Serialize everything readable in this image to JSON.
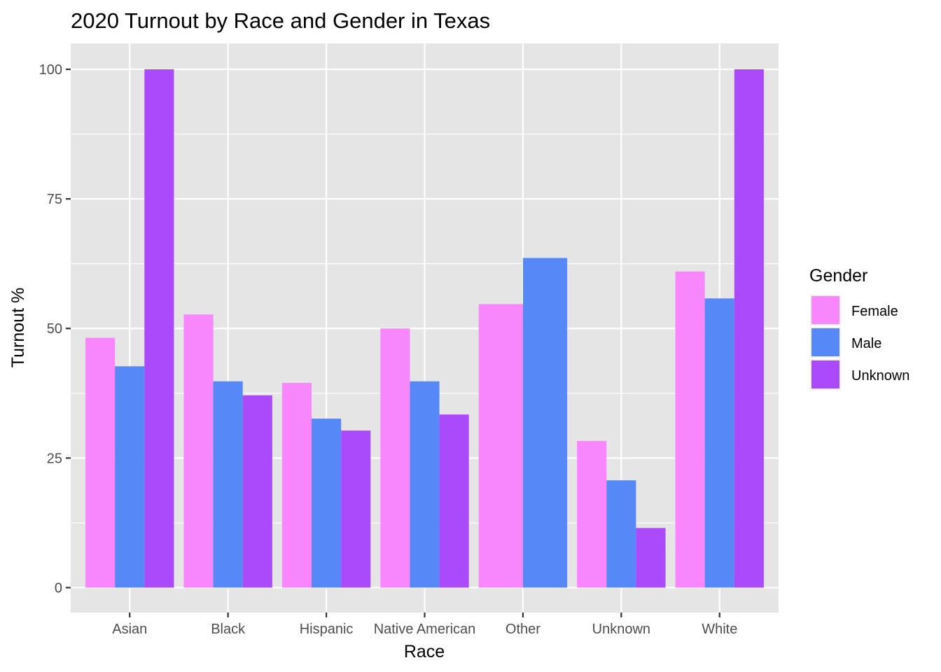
{
  "chart_data": {
    "type": "bar",
    "title": "2020 Turnout by Race and Gender in Texas",
    "xlabel": "Race",
    "ylabel": "Turnout %",
    "categories": [
      "Asian",
      "Black",
      "Hispanic",
      "Native American",
      "Other",
      "Unknown",
      "White"
    ],
    "series": [
      {
        "name": "Female",
        "color": "#F886FC",
        "values": [
          48.2,
          52.7,
          39.5,
          50.0,
          54.7,
          28.3,
          61.0
        ]
      },
      {
        "name": "Male",
        "color": "#5688F8",
        "values": [
          42.7,
          39.8,
          32.6,
          39.8,
          63.6,
          20.7,
          55.8
        ]
      },
      {
        "name": "Unknown",
        "color": "#AA4AFA",
        "values": [
          100,
          37.1,
          30.3,
          33.4,
          null,
          11.5,
          100
        ]
      }
    ],
    "ylim": [
      -4.8,
      105
    ],
    "yticks": [
      0,
      25,
      50,
      75,
      100
    ],
    "legend": {
      "title": "Gender",
      "position": "right"
    },
    "grid": true,
    "panel_background": "#E5E5E5",
    "grid_color": "#FFFFFF"
  }
}
